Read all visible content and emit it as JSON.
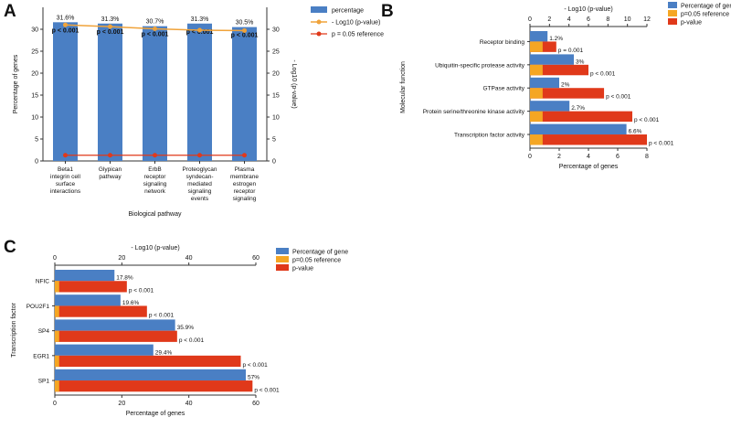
{
  "colors": {
    "percentage": "#4a7fc4",
    "reference": "#f5a623",
    "pvalue": "#e0391a",
    "line_a": "#f0a33a",
    "ref_a": "#e0391a"
  },
  "panels": {
    "a": "A",
    "b": "B",
    "c": "C"
  },
  "chart_data": [
    {
      "panel": "A",
      "type": "bar",
      "categories": [
        [
          "Beta1",
          "integrin cell",
          "surface",
          "interactions"
        ],
        [
          "Glypican",
          "pathway"
        ],
        [
          "ErbB",
          "receptor",
          "signaling",
          "network"
        ],
        [
          "Proteoglycan",
          "syndecan-",
          "mediated",
          "signaling",
          "events"
        ],
        [
          "Plasma",
          "membrane",
          "estrogen",
          "receptor",
          "signaling"
        ]
      ],
      "series": [
        {
          "name": "percentage",
          "values": [
            31.6,
            31.3,
            30.7,
            31.3,
            30.5
          ]
        },
        {
          "name": "- Log10 (p-value)",
          "values": [
            31.0,
            30.6,
            30.1,
            29.8,
            29.7
          ]
        },
        {
          "name": "p = 0.05 reference",
          "values": [
            1.3,
            1.3,
            1.3,
            1.3,
            1.3
          ]
        }
      ],
      "value_labels": [
        "31.6%",
        "31.3%",
        "30.7%",
        "31.3%",
        "30.5%"
      ],
      "p_labels": [
        "p < 0.001",
        "p < 0.001",
        "p < 0.001",
        "p < 0.001",
        "p < 0.001"
      ],
      "xlabel": "Biological pathway",
      "ylabel": "Percentage of genes",
      "y2label": "- Log10 (p-value)",
      "ylim": [
        0,
        35
      ],
      "yticks": [
        0,
        5,
        10,
        15,
        20,
        25,
        30
      ],
      "legend": [
        "percentage",
        "- Log10 (p-value)",
        "p = 0.05 reference"
      ]
    },
    {
      "panel": "B",
      "type": "bar",
      "orientation": "horizontal",
      "categories": [
        "Receptor binding",
        "Ubiquitin-specific protease activity",
        "GTPase activity",
        "Protein serine/threonine kinase activity",
        "Transcription factor activity"
      ],
      "series": [
        {
          "name": "Percentage of gene",
          "values": [
            1.2,
            3.0,
            2.0,
            2.7,
            6.6
          ]
        },
        {
          "name": "p=0.05 reference",
          "values": [
            1.3,
            1.3,
            1.3,
            1.3,
            1.3
          ]
        },
        {
          "name": "p-value",
          "values": [
            2.7,
            6.0,
            7.6,
            10.5,
            12.0
          ]
        }
      ],
      "value_labels": [
        "1.2%",
        "3%",
        "2%",
        "2.7%",
        "6.6%"
      ],
      "p_labels": [
        "p = 0.001",
        "p < 0.001",
        "p < 0.001",
        "p < 0.001",
        "p < 0.001"
      ],
      "xlabel": "Percentage of genes",
      "x2label": "- Log10 (p-value)",
      "ylabel": "Molecular function",
      "xlim": [
        0,
        8
      ],
      "x2lim": [
        0,
        12
      ],
      "xticks": [
        0,
        2,
        4,
        6,
        8
      ],
      "x2ticks": [
        0,
        2,
        4,
        6,
        8,
        10,
        12
      ],
      "legend": [
        "Percentage of gene",
        "p=0.05 reference",
        "p-value"
      ]
    },
    {
      "panel": "C",
      "type": "bar",
      "orientation": "horizontal",
      "categories": [
        "NFIC",
        "POU2F1",
        "SP4",
        "EGR1",
        "SP1"
      ],
      "series": [
        {
          "name": "Percentage of gene",
          "values": [
            17.8,
            19.6,
            35.9,
            29.4,
            57.0
          ]
        },
        {
          "name": "p=0.05 reference",
          "values": [
            1.3,
            1.3,
            1.3,
            1.3,
            1.3
          ]
        },
        {
          "name": "p-value",
          "values": [
            21.5,
            27.5,
            36.5,
            55.5,
            59.0
          ]
        }
      ],
      "value_labels": [
        "17.8%",
        "19.6%",
        "35.9%",
        "29.4%",
        "57%"
      ],
      "p_labels": [
        "p < 0.001",
        "p < 0.001",
        "p < 0.001",
        "p < 0.001",
        "p < 0.001"
      ],
      "xlabel": "Percentage of genes",
      "x2label": "- Log10 (p-value)",
      "ylabel": "Transcription factor",
      "xlim": [
        0,
        60
      ],
      "x2lim": [
        0,
        60
      ],
      "xticks": [
        0,
        20,
        40,
        60
      ],
      "x2ticks": [
        0,
        20,
        40,
        60
      ],
      "legend": [
        "Percentage of gene",
        "p=0.05 reference",
        "p-value"
      ]
    }
  ]
}
